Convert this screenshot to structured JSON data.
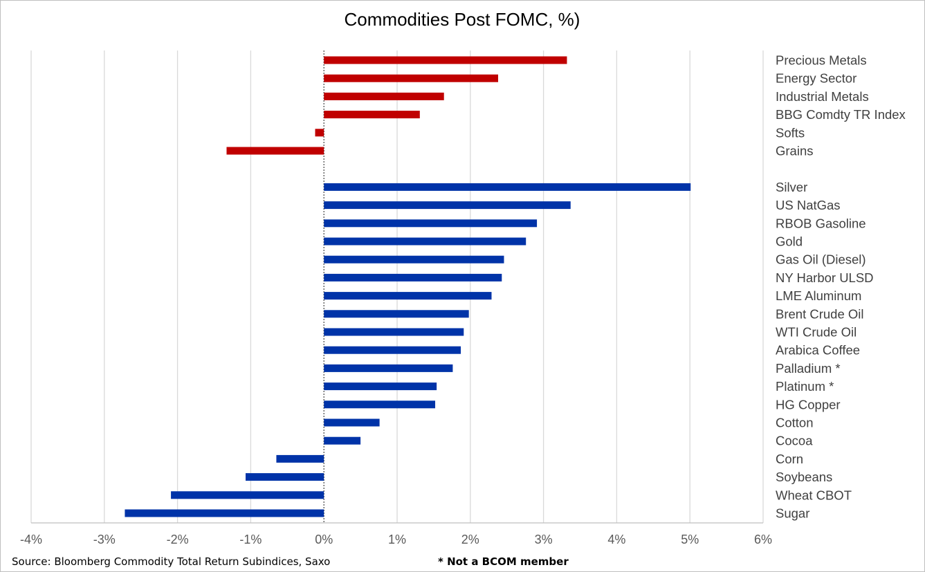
{
  "chart_data": {
    "type": "bar",
    "orientation": "horizontal",
    "title": "Commodities Post FOMC, %)",
    "xlim": [
      -4,
      6
    ],
    "x_ticks": [
      -4,
      -3,
      -2,
      -1,
      0,
      1,
      2,
      3,
      4,
      5,
      6
    ],
    "x_tick_labels": [
      "-4%",
      "-3%",
      "-2%",
      "-1%",
      "0%",
      "1%",
      "2%",
      "3%",
      "4%",
      "5%",
      "6%"
    ],
    "grid": "vertical",
    "colors": {
      "sectors": "#c00000",
      "commodities": "#0033a8"
    },
    "series": [
      {
        "group": "sectors",
        "categories": [
          "Precious Metals",
          "Energy Sector",
          "Industrial Metals",
          "BBG Comdty TR Index",
          "Softs",
          "Grains"
        ],
        "values": [
          3.32,
          2.38,
          1.64,
          1.31,
          -0.12,
          -1.33
        ]
      },
      {
        "group": "commodities",
        "categories": [
          "Silver",
          "US NatGas",
          "RBOB Gasoline",
          "Gold",
          "Gas Oil (Diesel)",
          "NY Harbor ULSD",
          "LME Aluminum",
          "Brent Crude Oil",
          "WTI Crude Oil",
          "Arabica Coffee",
          "Palladium *",
          "Platinum *",
          "HG Copper",
          "Cotton",
          "Cocoa",
          "Corn",
          "Soybeans",
          "Wheat CBOT",
          "Sugar"
        ],
        "values": [
          5.01,
          3.37,
          2.91,
          2.76,
          2.46,
          2.43,
          2.29,
          1.98,
          1.91,
          1.87,
          1.76,
          1.54,
          1.52,
          0.76,
          0.5,
          -0.65,
          -1.07,
          -2.09,
          -2.72
        ]
      }
    ]
  },
  "footer": {
    "source": "Source: Bloomberg Commodity Total Return Subindices, Saxo",
    "note": "* Not a BCOM member"
  }
}
